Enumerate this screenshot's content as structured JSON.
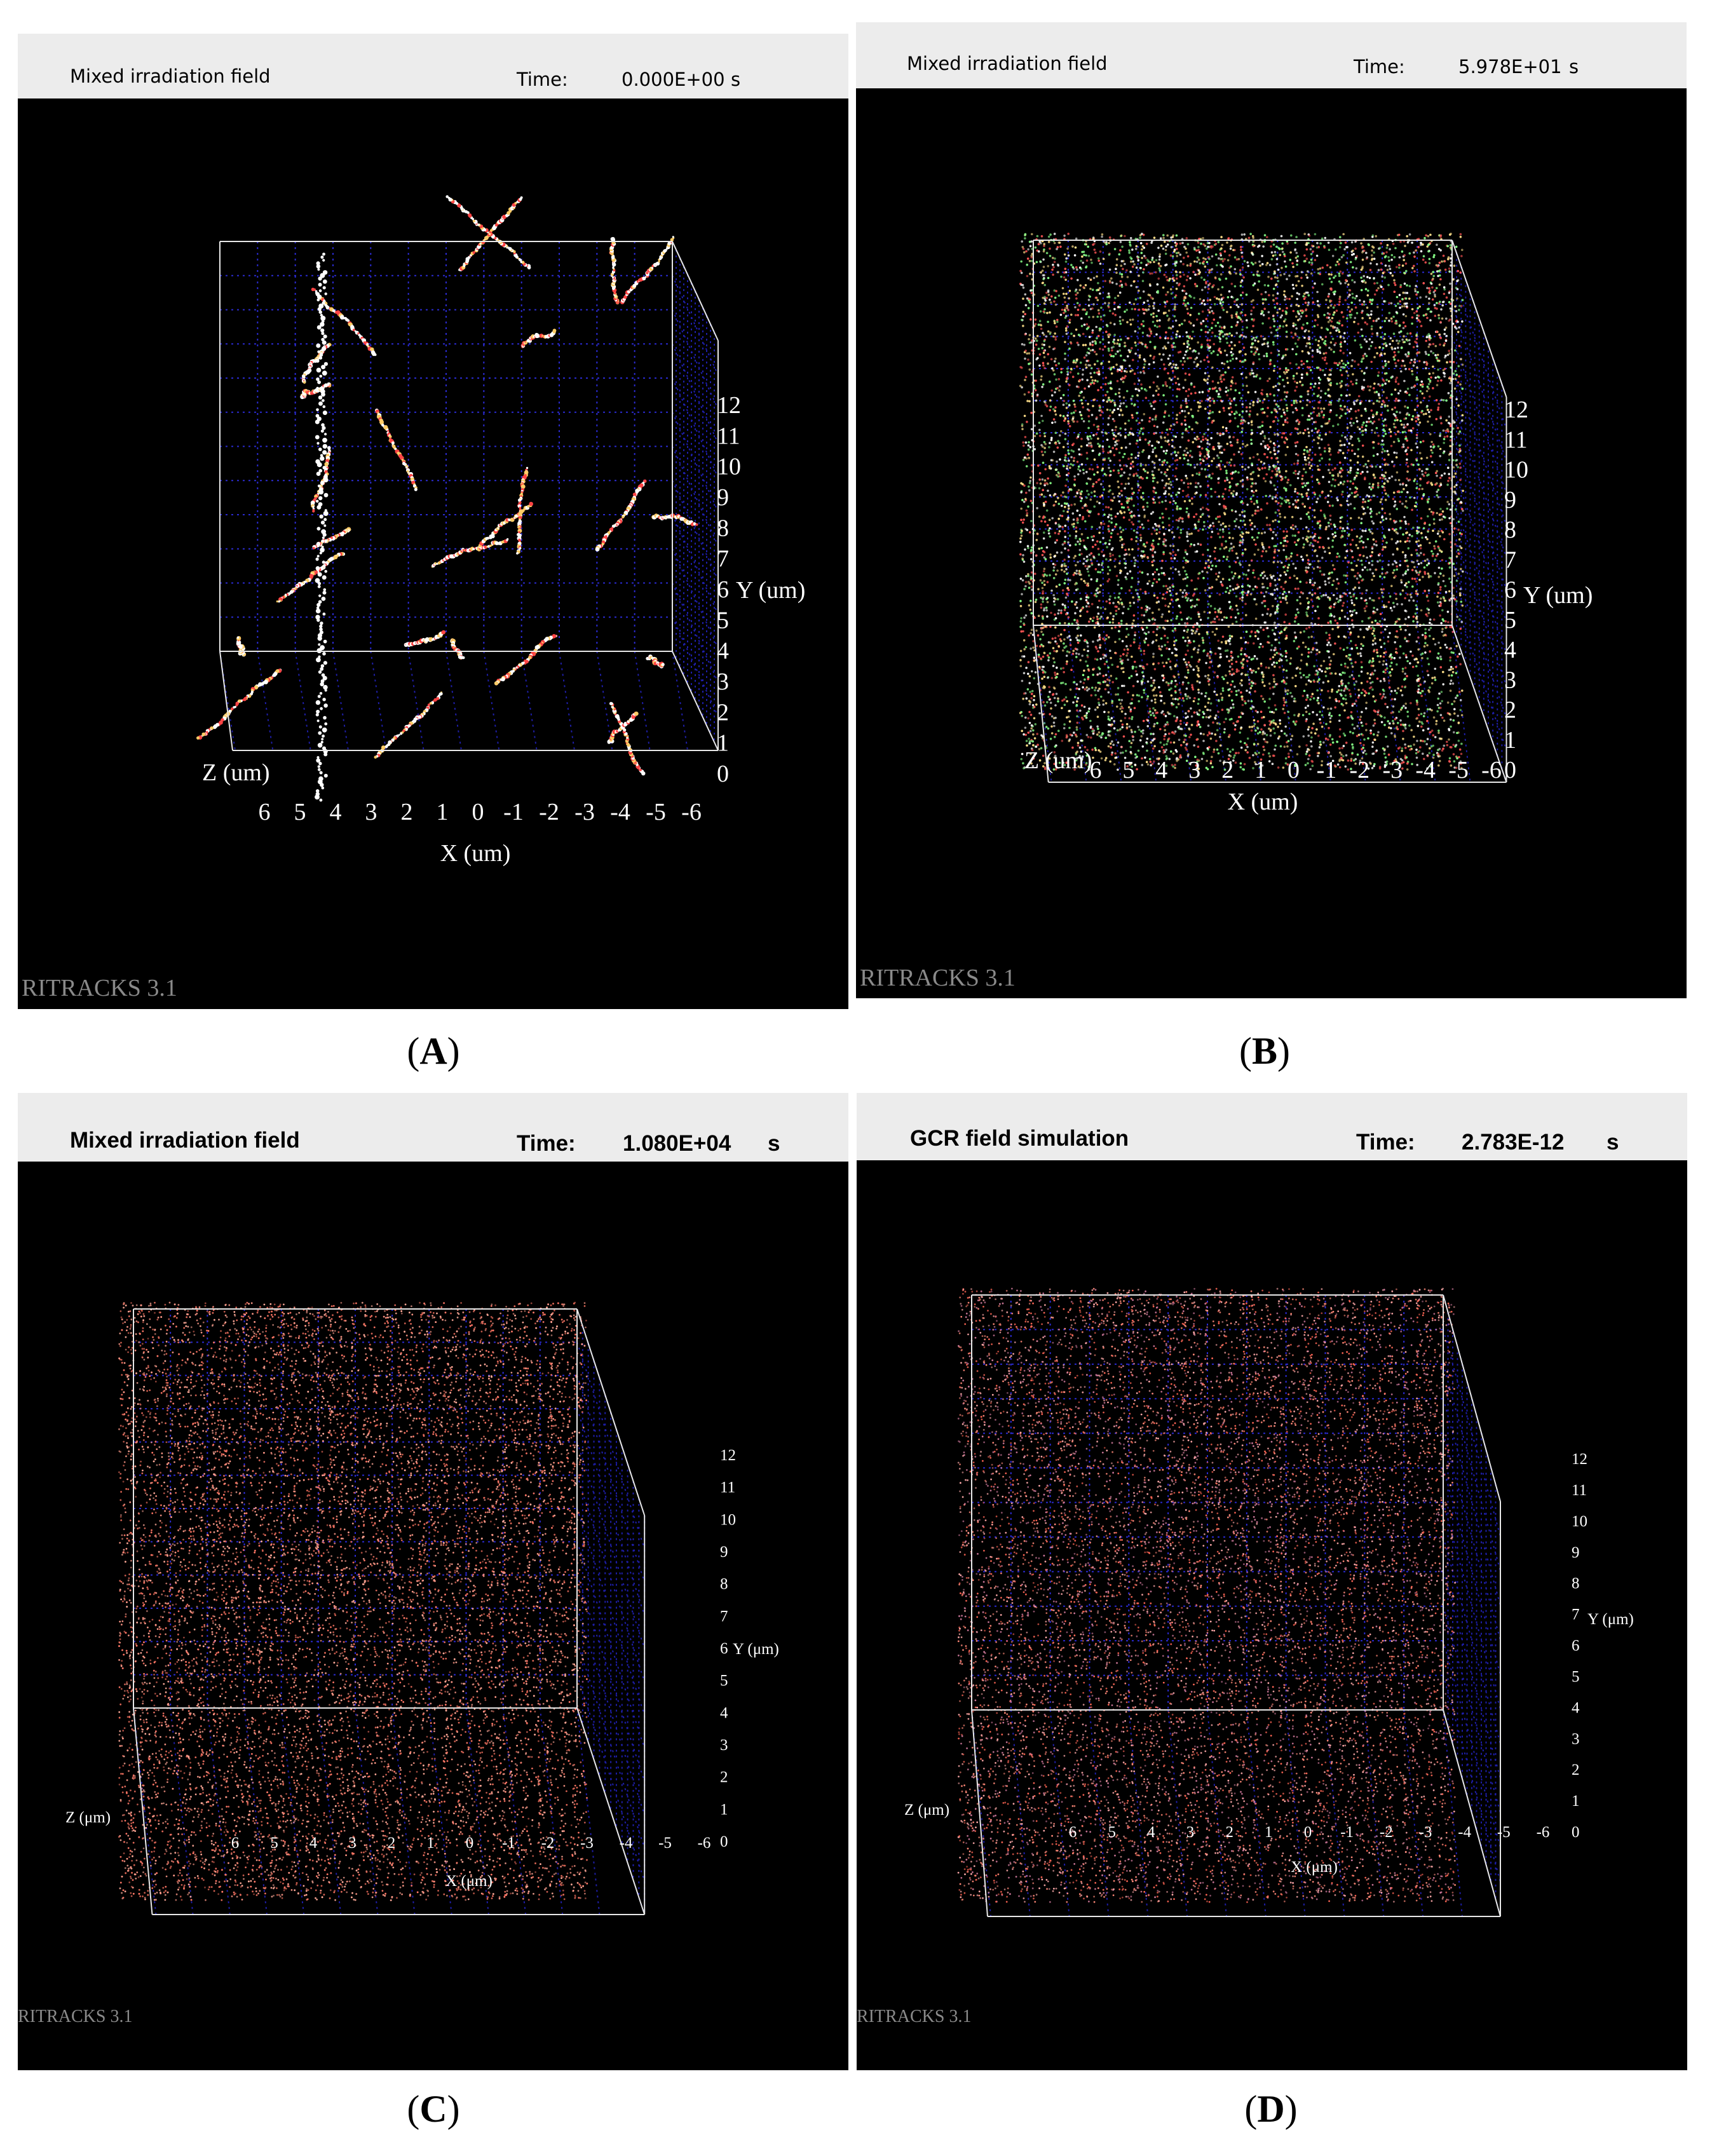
{
  "panels": [
    {
      "id": "A",
      "title": "Mixed irradiation field",
      "time_label": "Time:",
      "time_value": "0.000E+00",
      "time_unit": "s",
      "watermark": "RITRACKS 3.1",
      "caption": "A",
      "x_label": "X (um)",
      "y_label": "Y (um)",
      "z_label": "Z (um)",
      "x_ticks": [
        "6",
        "5",
        "4",
        "3",
        "2",
        "1",
        "0",
        "-1",
        "-2",
        "-3",
        "-4",
        "-5",
        "-6"
      ],
      "y_ticks": [
        "0",
        "1",
        "2",
        "3",
        "4",
        "5",
        "6",
        "7",
        "8",
        "9",
        "10",
        "11",
        "12"
      ],
      "density": "sparse",
      "colors": [
        "#ffffff",
        "#ff4444",
        "#ffcc66",
        "#ffffff"
      ]
    },
    {
      "id": "B",
      "title": "Mixed irradiation field",
      "time_label": "Time:",
      "time_value": "5.978E+01",
      "time_unit": "s",
      "watermark": "RITRACKS 3.1",
      "caption": "B",
      "x_label": "X (um)",
      "y_label": "Y (um)",
      "z_label": "Z (um)",
      "x_ticks": [
        "6",
        "5",
        "4",
        "3",
        "2",
        "1",
        "0",
        "-1",
        "-2",
        "-3",
        "-4",
        "-5",
        "-6"
      ],
      "y_ticks": [
        "0",
        "1",
        "2",
        "3",
        "4",
        "5",
        "6",
        "7",
        "8",
        "9",
        "10",
        "11",
        "12"
      ],
      "density": "dense",
      "colors": [
        "#ffffff",
        "#ff5555",
        "#ffe08a",
        "#88ff88"
      ]
    },
    {
      "id": "C",
      "title": "Mixed irradiation field",
      "time_label": "Time:",
      "time_value": "1.080E+04",
      "time_unit": "s",
      "watermark": "RITRACKS 3.1",
      "caption": "C",
      "x_label": "X (μm)",
      "y_label": "Y (μm)",
      "z_label": "Z (μm)",
      "x_ticks": [
        "6",
        "5",
        "4",
        "3",
        "2",
        "1",
        "0",
        "-1",
        "-2",
        "-3",
        "-4",
        "-5",
        "-6"
      ],
      "y_ticks": [
        "0",
        "1",
        "2",
        "3",
        "4",
        "5",
        "6",
        "7",
        "8",
        "9",
        "10",
        "11",
        "12"
      ],
      "density": "very-dense",
      "colors": [
        "#ff7766",
        "#ff9988",
        "#dd6655",
        "#ffaa99"
      ]
    },
    {
      "id": "D",
      "title": "GCR field simulation",
      "time_label": "Time:",
      "time_value": "2.783E-12",
      "time_unit": "s",
      "watermark": "RITRACKS 3.1",
      "caption": "D",
      "x_label": "X (μm)",
      "y_label": "Y (μm)",
      "z_label": "Z (μm)",
      "x_ticks": [
        "6",
        "5",
        "4",
        "3",
        "2",
        "1",
        "0",
        "-1",
        "-2",
        "-3",
        "-4",
        "-5",
        "-6"
      ],
      "y_ticks": [
        "0",
        "1",
        "2",
        "3",
        "4",
        "5",
        "6",
        "7",
        "8",
        "9",
        "10",
        "11",
        "12"
      ],
      "density": "tracks",
      "colors": [
        "#ff8877",
        "#cc7799",
        "#ffaaaa",
        "#ff6655"
      ]
    }
  ]
}
